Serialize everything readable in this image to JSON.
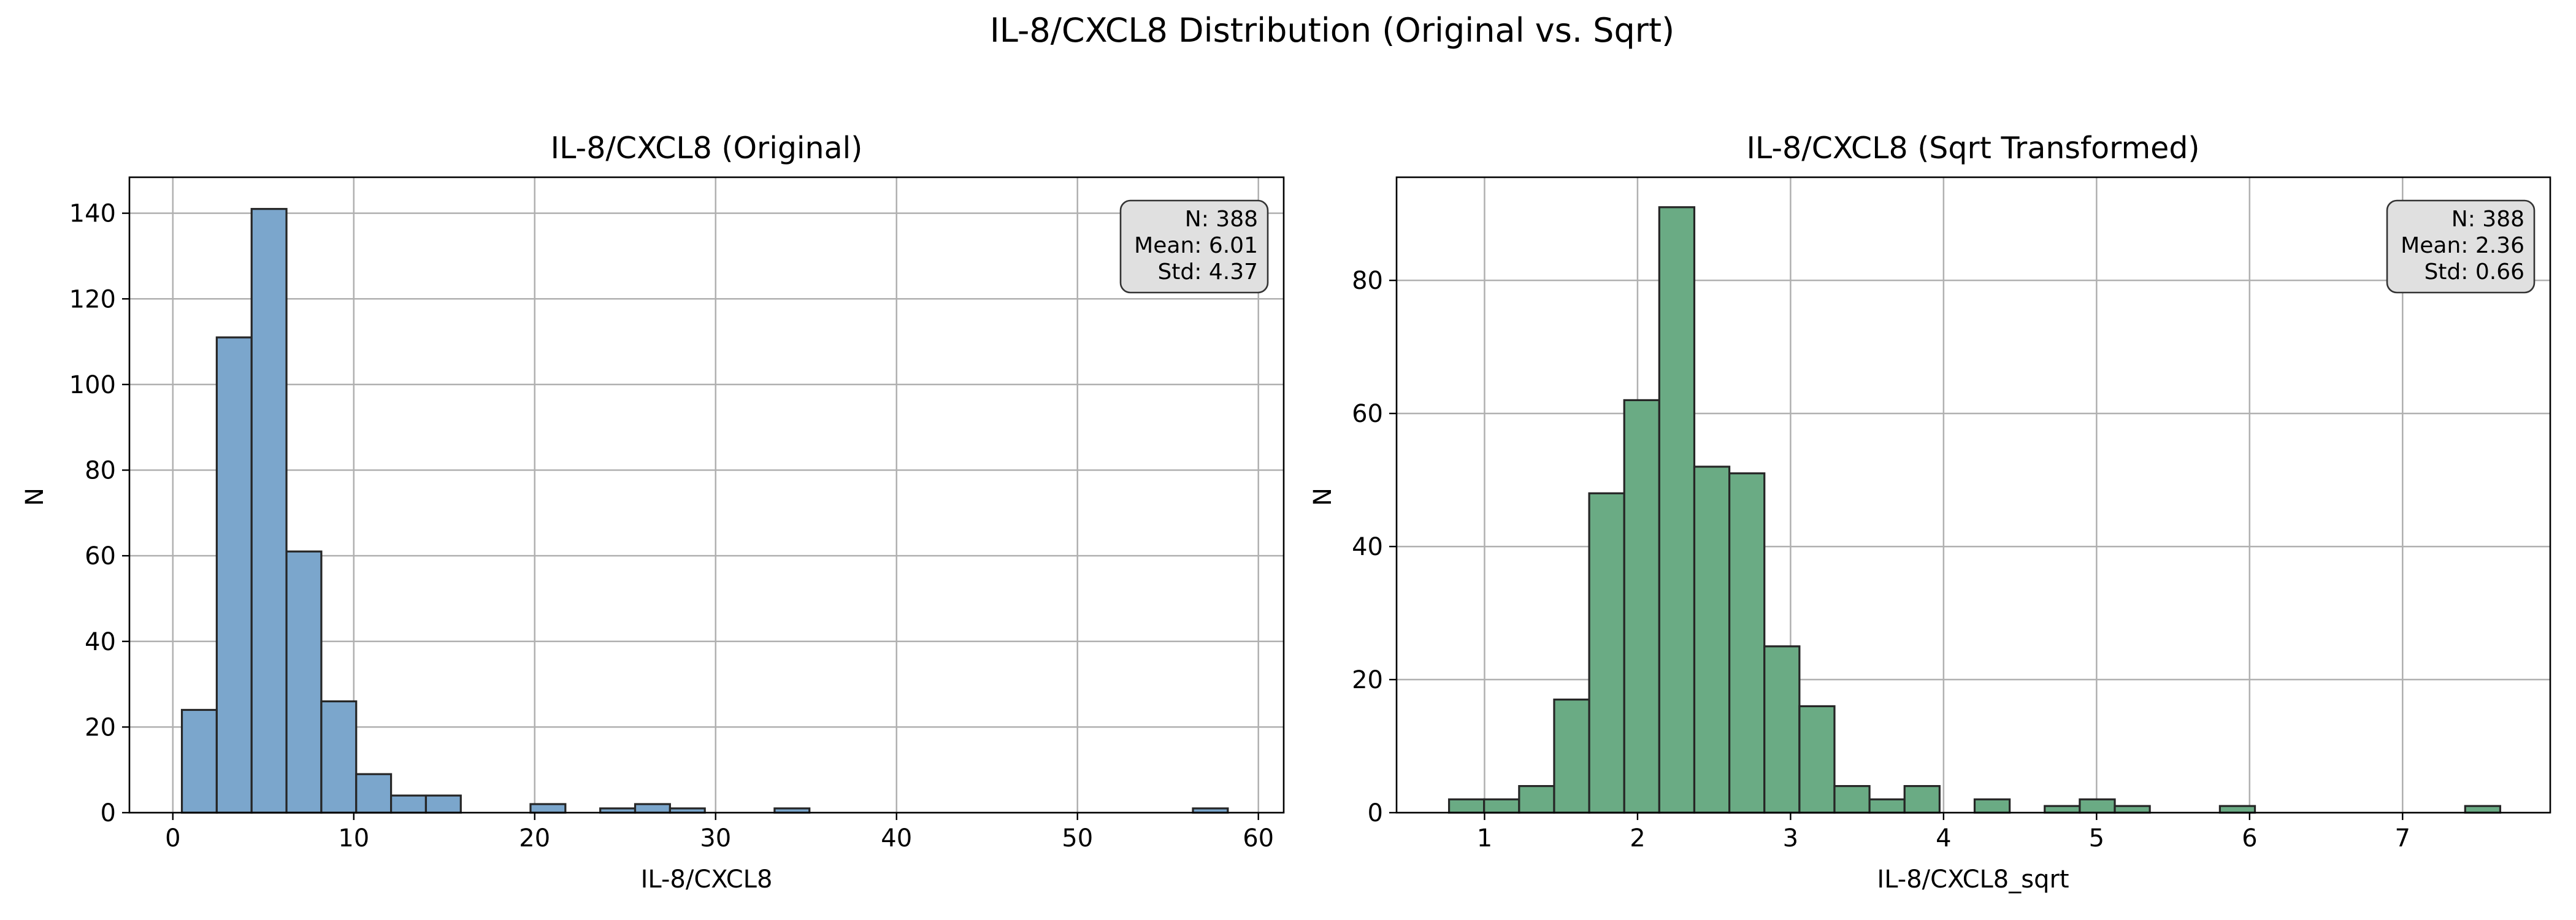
{
  "figure_title": "IL-8/CXCL8 Distribution (Original vs. Sqrt)",
  "chart_data": [
    {
      "type": "bar",
      "title": "IL-8/CXCL8 (Original)",
      "xlabel": "IL-8/CXCL8",
      "ylabel": "N",
      "xlim": [
        -2.4,
        61.4
      ],
      "ylim": [
        0,
        148.4
      ],
      "x_ticks": [
        0,
        10,
        20,
        30,
        40,
        50,
        60
      ],
      "y_ticks": [
        0,
        20,
        40,
        60,
        80,
        100,
        120,
        140
      ],
      "grid": true,
      "color": "#7ba6cc",
      "edge_color": "#262626",
      "bin_start": 0.5,
      "bin_width": 1.927,
      "counts": [
        24,
        111,
        141,
        61,
        26,
        9,
        4,
        4,
        0,
        0,
        2,
        0,
        1,
        2,
        1,
        0,
        0,
        1,
        0,
        0,
        0,
        0,
        0,
        0,
        0,
        0,
        0,
        0,
        0,
        1
      ],
      "stats_box": {
        "lines": [
          "N: 388",
          "Mean: 6.01",
          "Std: 4.37"
        ],
        "position": "top-right"
      }
    },
    {
      "type": "bar",
      "title": "IL-8/CXCL8 (Sqrt Transformed)",
      "xlabel": "IL-8/CXCL8_sqrt",
      "ylabel": "N",
      "xlim": [
        0.425,
        7.965
      ],
      "ylim": [
        0,
        95.5
      ],
      "x_ticks": [
        1,
        2,
        3,
        4,
        5,
        6,
        7
      ],
      "y_ticks": [
        0,
        20,
        40,
        60,
        80
      ],
      "grid": true,
      "color": "#6aab84",
      "edge_color": "#262626",
      "bin_start": 0.768,
      "bin_width": 0.229,
      "counts": [
        2,
        2,
        4,
        17,
        48,
        62,
        91,
        52,
        51,
        25,
        16,
        4,
        2,
        4,
        0,
        2,
        0,
        1,
        2,
        1,
        0,
        0,
        1,
        0,
        0,
        0,
        0,
        0,
        0,
        1
      ],
      "stats_box": {
        "lines": [
          "N: 388",
          "Mean: 2.36",
          "Std: 0.66"
        ],
        "position": "top-right"
      }
    }
  ]
}
